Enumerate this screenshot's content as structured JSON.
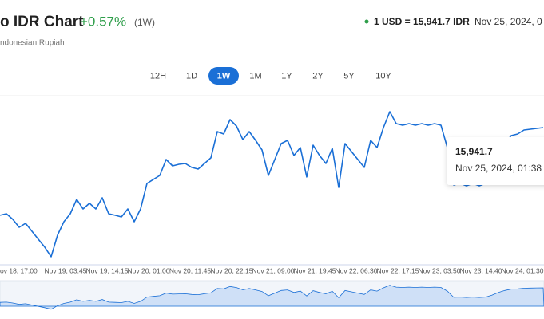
{
  "chart_data": {
    "type": "line",
    "title": "o IDR Chart",
    "change": "+0.57%",
    "period": "(1W)",
    "subtitle": "ndonesian Rupiah",
    "rate": "1 USD = 15,941.7 IDR",
    "date": "Nov 25, 2024, 0",
    "ranges": [
      "12H",
      "1D",
      "1W",
      "1M",
      "1Y",
      "2Y",
      "5Y",
      "10Y"
    ],
    "active_range": "1W",
    "x_labels": [
      "ov 18, 17:00",
      "Nov 19, 03:45",
      "Nov 19, 14:15",
      "Nov 20, 01:00",
      "Nov 20, 11:45",
      "Nov 20, 22:15",
      "Nov 21, 09:00",
      "Nov 21, 19:45",
      "Nov 22, 06:30",
      "Nov 22, 17:15",
      "Nov 23, 03:50",
      "Nov 23, 14:40",
      "Nov 24, 01:30"
    ],
    "color": "#1a6fd6",
    "ylim": [
      15795.9,
      15966.7
    ],
    "values": [
      15850.1,
      15851.7,
      15845.9,
      15837.6,
      15841.7,
      15833.4,
      15825.1,
      15816.8,
      15806.8,
      15829.3,
      15843.4,
      15851.7,
      15866.7,
      15856.7,
      15862.6,
      15856.7,
      15868.4,
      15851.7,
      15850.1,
      15848.4,
      15856.7,
      15843.4,
      15856.7,
      15883.4,
      15887.6,
      15891.7,
      15908.4,
      15901.7,
      15903.4,
      15904.2,
      15900.1,
      15898.4,
      15904.2,
      15910.1,
      15937.5,
      15935.0,
      15950.0,
      15943.4,
      15929.2,
      15937.5,
      15928.4,
      15918.4,
      15891.7,
      15908.4,
      15925.0,
      15928.4,
      15912.6,
      15920.9,
      15890.1,
      15923.4,
      15912.6,
      15904.2,
      15920.1,
      15879.2,
      15925.0,
      15916.7,
      15908.4,
      15900.1,
      15928.4,
      15920.9,
      15941.7,
      15958.4,
      15945.9,
      15944.2,
      15945.9,
      15944.2,
      15945.9,
      15944.2,
      15945.9,
      15944.2,
      15920.9,
      15881.7,
      15883.4,
      15880.9,
      15883.4,
      15880.9,
      15883.4,
      15895.9,
      15912.6,
      15925.0,
      15933.4,
      15935.0,
      15939.2,
      15940.0,
      15940.9,
      15941.7
    ],
    "tooltip": {
      "value": "15,941.7",
      "date": "Nov 25, 2024, 01:38"
    }
  }
}
